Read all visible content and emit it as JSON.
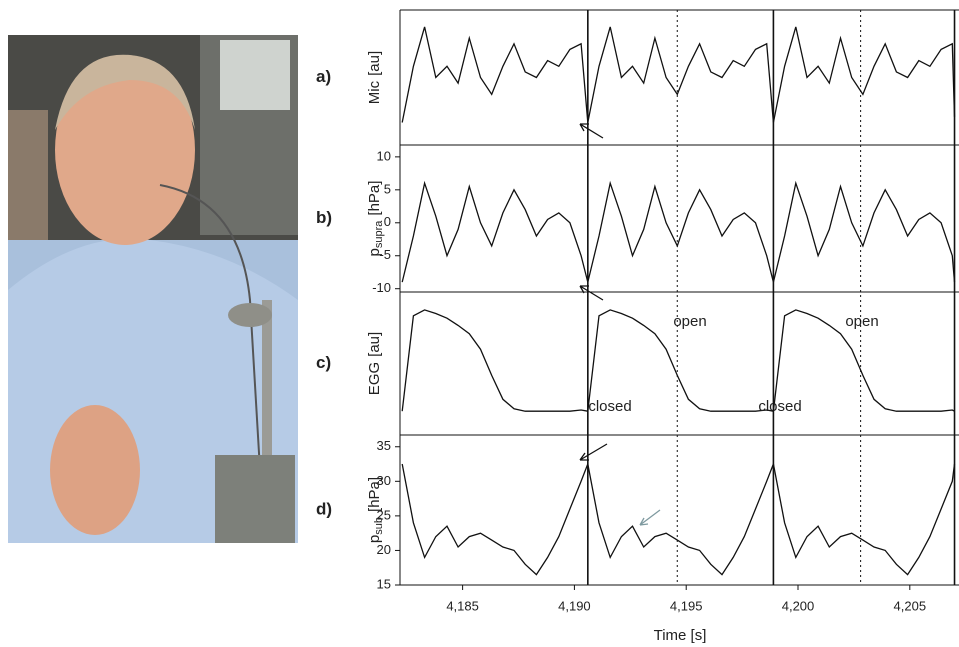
{
  "figure": {
    "xlabel": "Time [s]",
    "markers_solid": [
      4190.6,
      4198.9,
      4207.0
    ],
    "markers_dotted": [
      4194.6,
      4202.8
    ],
    "xlim": [
      4182.2,
      4207.2
    ]
  },
  "chart_data": [
    {
      "type": "line",
      "panel_label": "a)",
      "ylabel": "Mic",
      "ylabel_unit": "[au]",
      "color": "#111111",
      "ylim": [
        -0.1,
        1.1
      ],
      "x": [
        4182.3,
        4182.8,
        4183.3,
        4183.8,
        4184.3,
        4184.8,
        4185.3,
        4185.8,
        4186.3,
        4186.8,
        4187.3,
        4187.8,
        4188.3,
        4188.8,
        4189.3,
        4189.8,
        4190.3,
        4190.6,
        4191.1,
        4191.6,
        4192.1,
        4192.6,
        4193.1,
        4193.6,
        4194.1,
        4194.6,
        4195.1,
        4195.6,
        4196.1,
        4196.6,
        4197.1,
        4197.6,
        4198.1,
        4198.6,
        4198.9,
        4199.4,
        4199.9,
        4200.4,
        4200.9,
        4201.4,
        4201.9,
        4202.4,
        4202.9,
        4203.4,
        4203.9,
        4204.4,
        4204.9,
        4205.4,
        4205.9,
        4206.4,
        4206.9,
        4207.0
      ],
      "values": [
        0.1,
        0.6,
        0.95,
        0.5,
        0.6,
        0.45,
        0.85,
        0.5,
        0.35,
        0.6,
        0.8,
        0.55,
        0.5,
        0.65,
        0.6,
        0.75,
        0.8,
        0.1,
        0.6,
        0.95,
        0.5,
        0.6,
        0.45,
        0.85,
        0.5,
        0.35,
        0.6,
        0.8,
        0.55,
        0.5,
        0.65,
        0.6,
        0.75,
        0.8,
        0.1,
        0.6,
        0.95,
        0.5,
        0.6,
        0.45,
        0.85,
        0.5,
        0.35,
        0.6,
        0.8,
        0.55,
        0.5,
        0.65,
        0.6,
        0.75,
        0.8,
        0.15
      ]
    },
    {
      "type": "line",
      "panel_label": "b)",
      "ylabel": "p",
      "ylabel_sub": "supra",
      "ylabel_unit": "[hPa]",
      "color": "#111111",
      "ylim": [
        -10.5,
        11.8
      ],
      "yticks": [
        10,
        5,
        0,
        -5,
        -10
      ],
      "x": [
        4182.3,
        4182.8,
        4183.3,
        4183.8,
        4184.3,
        4184.8,
        4185.3,
        4185.8,
        4186.3,
        4186.8,
        4187.3,
        4187.8,
        4188.3,
        4188.8,
        4189.3,
        4189.8,
        4190.3,
        4190.6,
        4191.1,
        4191.6,
        4192.1,
        4192.6,
        4193.1,
        4193.6,
        4194.1,
        4194.6,
        4195.1,
        4195.6,
        4196.1,
        4196.6,
        4197.1,
        4197.6,
        4198.1,
        4198.6,
        4198.9,
        4199.4,
        4199.9,
        4200.4,
        4200.9,
        4201.4,
        4201.9,
        4202.4,
        4202.9,
        4203.4,
        4203.9,
        4204.4,
        4204.9,
        4205.4,
        4205.9,
        4206.4,
        4206.9,
        4207.0
      ],
      "values": [
        -9,
        -2,
        6,
        1,
        -5,
        -1,
        5.5,
        0,
        -3.5,
        1.5,
        5,
        2,
        -2,
        0.5,
        1.5,
        0,
        -5,
        -9,
        -2,
        6,
        1,
        -5,
        -1,
        5.5,
        0,
        -3.5,
        1.5,
        5,
        2,
        -2,
        0.5,
        1.5,
        0,
        -5,
        -9,
        -2,
        6,
        1,
        -5,
        -1,
        5.5,
        0,
        -3.5,
        1.5,
        5,
        2,
        -2,
        0.5,
        1.5,
        0,
        -5,
        -9
      ]
    },
    {
      "type": "line",
      "panel_label": "c)",
      "ylabel": "EGG",
      "ylabel_unit": "[au]",
      "color": "#111111",
      "ylim": [
        -0.1,
        1.1
      ],
      "annotations": [
        "closed",
        "open",
        "closed",
        "open"
      ],
      "x": [
        4182.3,
        4182.8,
        4183.3,
        4183.8,
        4184.3,
        4184.8,
        4185.3,
        4185.8,
        4186.3,
        4186.8,
        4187.3,
        4187.8,
        4188.3,
        4188.8,
        4189.3,
        4189.8,
        4190.3,
        4190.6,
        4191.1,
        4191.6,
        4192.1,
        4192.6,
        4193.1,
        4193.6,
        4194.1,
        4194.6,
        4195.1,
        4195.6,
        4196.1,
        4196.6,
        4197.1,
        4197.6,
        4198.1,
        4198.6,
        4198.9,
        4199.4,
        4199.9,
        4200.4,
        4200.9,
        4201.4,
        4201.9,
        4202.4,
        4202.9,
        4203.4,
        4203.9,
        4204.4,
        4204.9,
        4205.4,
        4205.9,
        4206.4,
        4206.9,
        4207.0
      ],
      "values": [
        0.1,
        0.9,
        0.95,
        0.92,
        0.88,
        0.82,
        0.75,
        0.62,
        0.4,
        0.2,
        0.12,
        0.1,
        0.1,
        0.1,
        0.1,
        0.1,
        0.11,
        0.1,
        0.9,
        0.95,
        0.92,
        0.88,
        0.82,
        0.75,
        0.62,
        0.4,
        0.2,
        0.12,
        0.1,
        0.1,
        0.1,
        0.1,
        0.1,
        0.11,
        0.1,
        0.9,
        0.95,
        0.92,
        0.88,
        0.82,
        0.75,
        0.62,
        0.4,
        0.2,
        0.12,
        0.1,
        0.1,
        0.1,
        0.1,
        0.1,
        0.11,
        0.1
      ]
    },
    {
      "type": "line",
      "panel_label": "d)",
      "ylabel": "p",
      "ylabel_sub": "sub",
      "ylabel_unit": "[hPa]",
      "color": "#111111",
      "ylim": [
        15,
        36.7
      ],
      "yticks": [
        35,
        30,
        25,
        20,
        15
      ],
      "xticks": [
        {
          "value": 4185,
          "label": "4,185"
        },
        {
          "value": 4190,
          "label": "4,190"
        },
        {
          "value": 4195,
          "label": "4,195"
        },
        {
          "value": 4200,
          "label": "4,200"
        },
        {
          "value": 4205,
          "label": "4,205"
        }
      ],
      "x": [
        4182.3,
        4182.8,
        4183.3,
        4183.8,
        4184.3,
        4184.8,
        4185.3,
        4185.8,
        4186.3,
        4186.8,
        4187.3,
        4187.8,
        4188.3,
        4188.8,
        4189.3,
        4189.8,
        4190.3,
        4190.6,
        4191.1,
        4191.6,
        4192.1,
        4192.6,
        4193.1,
        4193.6,
        4194.1,
        4194.6,
        4195.1,
        4195.6,
        4196.1,
        4196.6,
        4197.1,
        4197.6,
        4198.1,
        4198.6,
        4198.9,
        4199.4,
        4199.9,
        4200.4,
        4200.9,
        4201.4,
        4201.9,
        4202.4,
        4202.9,
        4203.4,
        4203.9,
        4204.4,
        4204.9,
        4205.4,
        4205.9,
        4206.4,
        4206.9,
        4207.0
      ],
      "values": [
        32.5,
        24,
        19,
        22,
        23.5,
        20.5,
        22,
        22.5,
        21.5,
        20.5,
        20,
        18,
        16.5,
        19,
        22,
        26,
        30,
        32.5,
        24,
        19,
        22,
        23.5,
        20.5,
        22,
        22.5,
        21.5,
        20.5,
        20,
        18,
        16.5,
        19,
        22,
        26,
        30,
        32.5,
        24,
        19,
        22,
        23.5,
        20.5,
        22,
        22.5,
        21.5,
        20.5,
        20,
        18,
        16.5,
        19,
        22,
        26,
        30,
        32.5
      ]
    }
  ]
}
